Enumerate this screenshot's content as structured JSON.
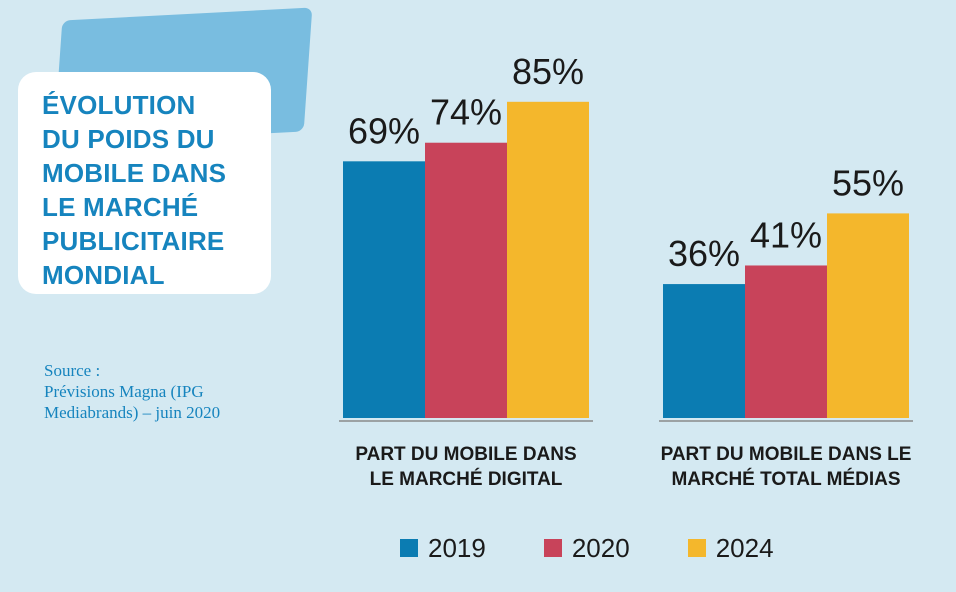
{
  "title": {
    "lines": [
      "ÉVOLUTION",
      "DU POIDS DU",
      "MOBILE DANS",
      "LE MARCHÉ",
      "PUBLICITAIRE",
      "MONDIAL"
    ]
  },
  "source": {
    "lines": [
      "Source :",
      "Prévisions Magna (IPG",
      "Mediabrands) – juin 2020"
    ]
  },
  "colors": {
    "background": "#d4e9f2",
    "accent": "#79bde0",
    "title": "#1684be",
    "2019": "#0b7cb2",
    "2020": "#c8435a",
    "2024": "#f4b72c"
  },
  "chart_data": {
    "type": "bar",
    "title": "ÉVOLUTION DU POIDS DU MOBILE DANS LE MARCHÉ PUBLICITAIRE MONDIAL",
    "legend_position": "bottom",
    "grid": false,
    "ylim": [
      0,
      100
    ],
    "series_names": [
      "2019",
      "2020",
      "2024"
    ],
    "groups": [
      {
        "label_lines": [
          "PART DU MOBILE DANS",
          "LE MARCHÉ DIGITAL"
        ],
        "values": [
          69,
          74,
          85
        ],
        "value_labels": [
          "69%",
          "74%",
          "85%"
        ]
      },
      {
        "label_lines": [
          "PART DU MOBILE DANS LE",
          "MARCHÉ TOTAL MÉDIAS"
        ],
        "values": [
          36,
          41,
          55
        ],
        "value_labels": [
          "36%",
          "41%",
          "55%"
        ]
      }
    ]
  }
}
